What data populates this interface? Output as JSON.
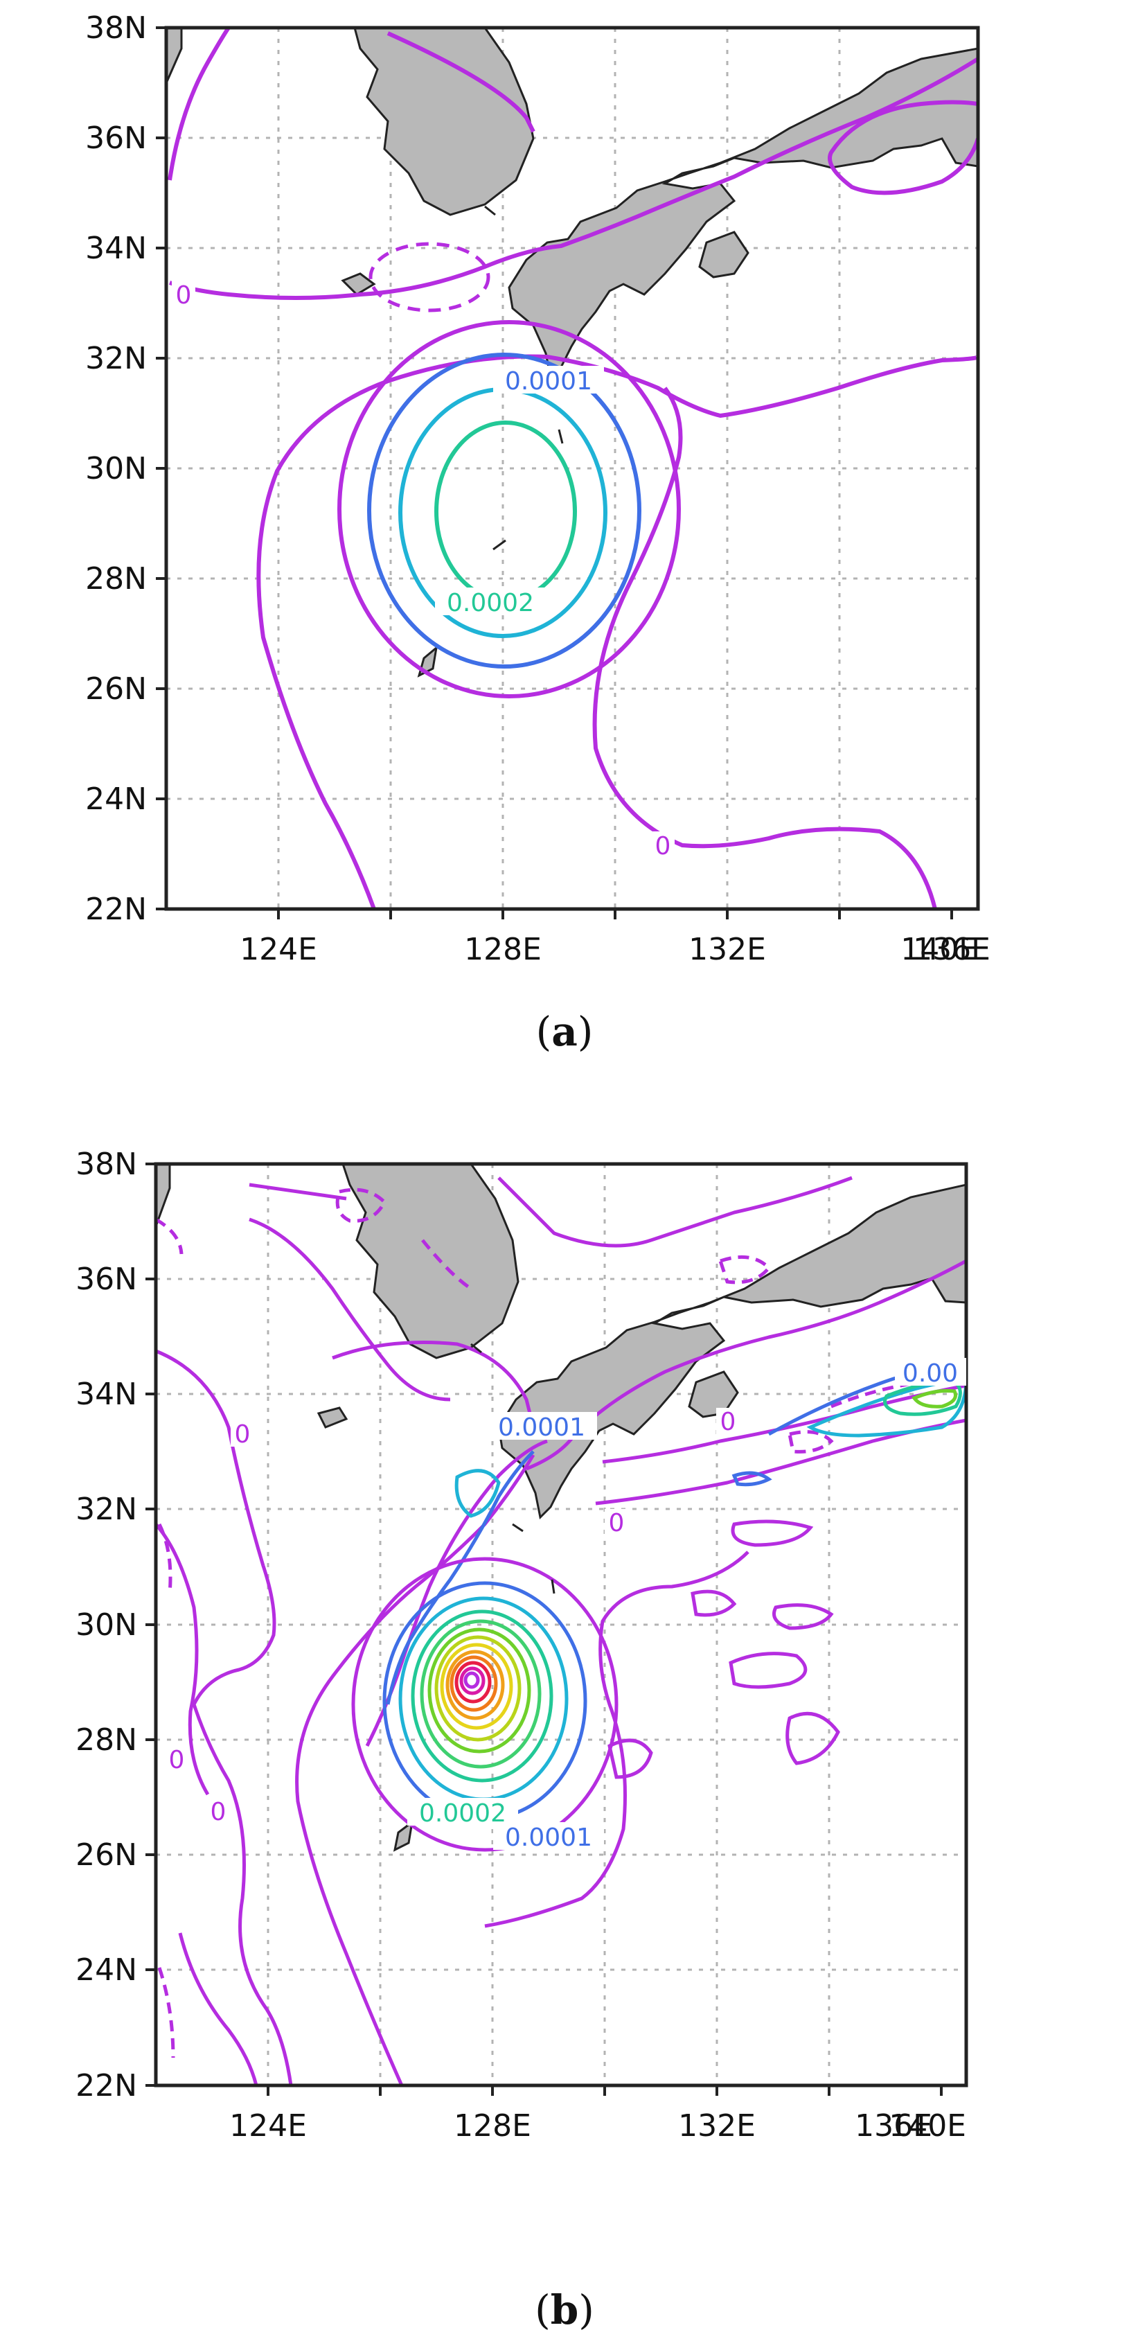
{
  "panels": [
    {
      "id": "a",
      "caption_letter": "a",
      "lat_ticks": [
        "22N",
        "24N",
        "26N",
        "28N",
        "30N",
        "32N",
        "34N",
        "36N",
        "38N"
      ],
      "lon_ticks": [
        "124E",
        "128E",
        "132E",
        "136E",
        "140E"
      ],
      "contour_labels": [
        "0.0001",
        "0.0002",
        "0",
        "0"
      ]
    },
    {
      "id": "b",
      "caption_letter": "b",
      "lat_ticks": [
        "22N",
        "24N",
        "26N",
        "28N",
        "30N",
        "32N",
        "34N",
        "36N",
        "38N"
      ],
      "lon_ticks": [
        "124E",
        "128E",
        "132E",
        "136E",
        "140E"
      ],
      "contour_labels": [
        "0.0001",
        "0.0002",
        "0.0001",
        "0.00",
        "0",
        "0",
        "0",
        "0",
        "0"
      ]
    }
  ],
  "colors": {
    "land": "#b8b8b8",
    "zero_contour": "#b52de0",
    "c1": "#3f6fe6",
    "c2": "#1fb3d6",
    "c3": "#22c896",
    "c4": "#6fd02a",
    "c5": "#e6d41a",
    "c6": "#f07a1a",
    "c7": "#e81e46",
    "c8": "#d81aa8"
  }
}
